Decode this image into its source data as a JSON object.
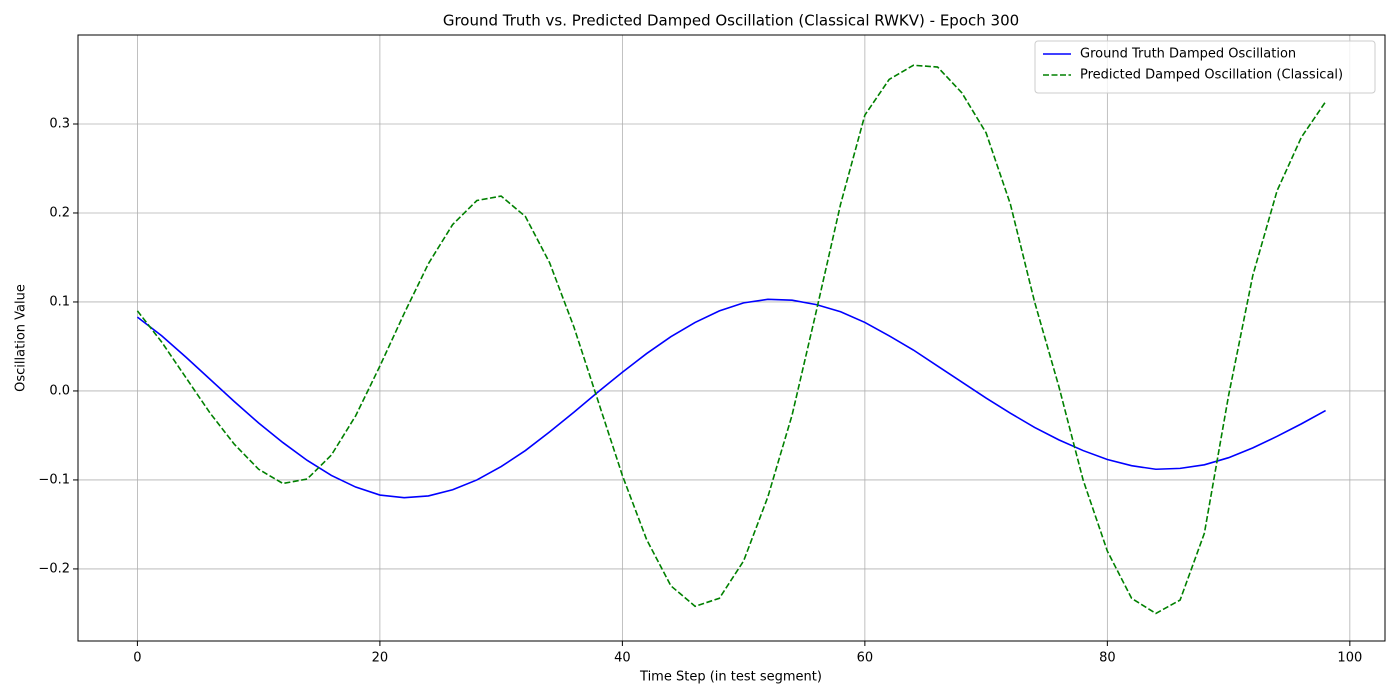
{
  "chart_data": {
    "type": "line",
    "title": "Ground Truth vs. Predicted Damped Oscillation (Classical RWKV) - Epoch 300",
    "x_label": "Time Step (in test segment)",
    "y_label": "Oscillation Value",
    "x": [
      0,
      2,
      4,
      6,
      8,
      10,
      12,
      14,
      16,
      18,
      20,
      22,
      24,
      26,
      28,
      30,
      32,
      34,
      36,
      38,
      40,
      42,
      44,
      46,
      48,
      50,
      52,
      54,
      56,
      58,
      60,
      62,
      64,
      66,
      68,
      70,
      72,
      74,
      76,
      78,
      80,
      82,
      84,
      86,
      88,
      90,
      92,
      94,
      96,
      98
    ],
    "series": [
      {
        "name": "Ground Truth Damped Oscillation",
        "color": "#0000ff",
        "linestyle": "solid",
        "values": [
          0.083,
          0.062,
          0.038,
          0.013,
          -0.012,
          -0.036,
          -0.058,
          -0.078,
          -0.095,
          -0.108,
          -0.117,
          -0.12,
          -0.118,
          -0.111,
          -0.1,
          -0.085,
          -0.067,
          -0.046,
          -0.024,
          -0.001,
          0.021,
          0.042,
          0.061,
          0.077,
          0.09,
          0.099,
          0.103,
          0.102,
          0.097,
          0.089,
          0.077,
          0.062,
          0.046,
          0.028,
          0.01,
          -0.008,
          -0.025,
          -0.041,
          -0.055,
          -0.067,
          -0.077,
          -0.084,
          -0.088,
          -0.087,
          -0.083,
          -0.075,
          -0.064,
          -0.051,
          -0.037,
          -0.022
        ]
      },
      {
        "name": "Predicted Damped Oscillation (Classical)",
        "color": "#008000",
        "linestyle": "dashed",
        "values": [
          0.09,
          0.055,
          0.015,
          -0.025,
          -0.06,
          -0.088,
          -0.104,
          -0.099,
          -0.072,
          -0.028,
          0.028,
          0.087,
          0.143,
          0.187,
          0.214,
          0.219,
          0.196,
          0.144,
          0.072,
          -0.0115,
          -0.095,
          -0.167,
          -0.219,
          -0.242,
          -0.233,
          -0.191,
          -0.119,
          -0.027,
          0.09,
          0.21,
          0.31,
          0.35,
          0.366,
          0.364,
          0.335,
          0.29,
          0.21,
          0.1,
          0.005,
          -0.1,
          -0.18,
          -0.233,
          -0.25,
          -0.235,
          -0.16,
          -0.005,
          0.13,
          0.225,
          0.285,
          0.325
        ]
      }
    ],
    "xlim": [
      -4.9,
      102.9
    ],
    "ylim": [
      -0.281,
      0.4
    ],
    "xticks": [
      0,
      20,
      40,
      60,
      80,
      100
    ],
    "yticks": [
      {
        "value": -0.2,
        "label": "−0.2"
      },
      {
        "value": -0.1,
        "label": "−0.1"
      },
      {
        "value": 0,
        "label": "0.0"
      },
      0.1,
      0.2,
      0.3
    ],
    "grid": true,
    "legend": "upper right"
  }
}
